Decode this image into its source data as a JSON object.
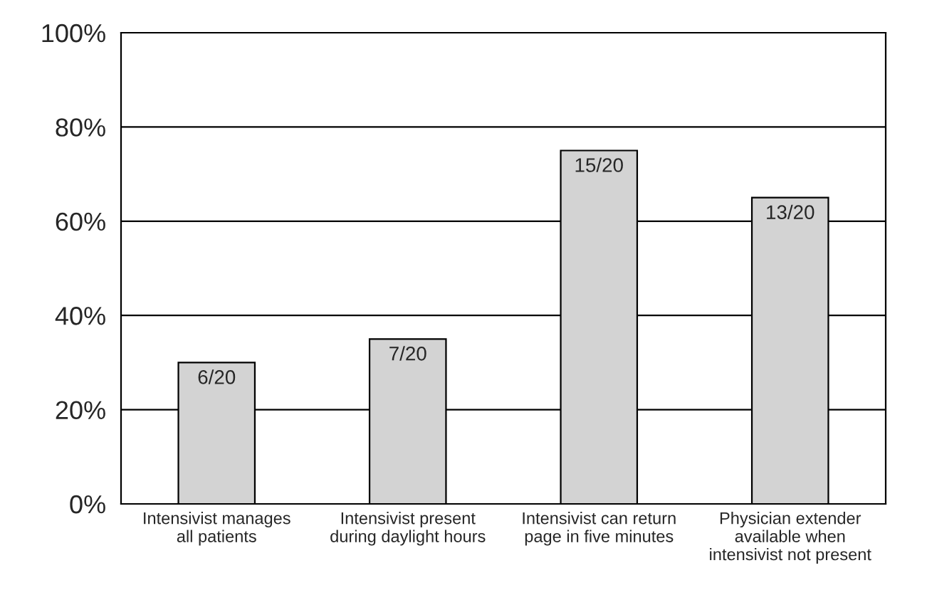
{
  "chart_data": {
    "type": "bar",
    "categories": [
      "Intensivist manages\nall patients",
      "Intensivist present\nduring daylight hours",
      "Intensivist can return\npage in five minutes",
      "Physician extender\navailable when\nintensivist not present"
    ],
    "values": [
      30,
      35,
      75,
      65
    ],
    "value_labels": [
      "6/20",
      "7/20",
      "15/20",
      "13/20"
    ],
    "color": "#d3d3d3",
    "ylim": [
      0,
      100
    ],
    "yticks": [
      {
        "value": 0,
        "label": "0%"
      },
      {
        "value": 20,
        "label": "20%"
      },
      {
        "value": 40,
        "label": "40%"
      },
      {
        "value": 60,
        "label": "60%"
      },
      {
        "value": 80,
        "label": "80%"
      },
      {
        "value": 100,
        "label": "100%"
      }
    ],
    "grid": "y",
    "legend": false
  }
}
